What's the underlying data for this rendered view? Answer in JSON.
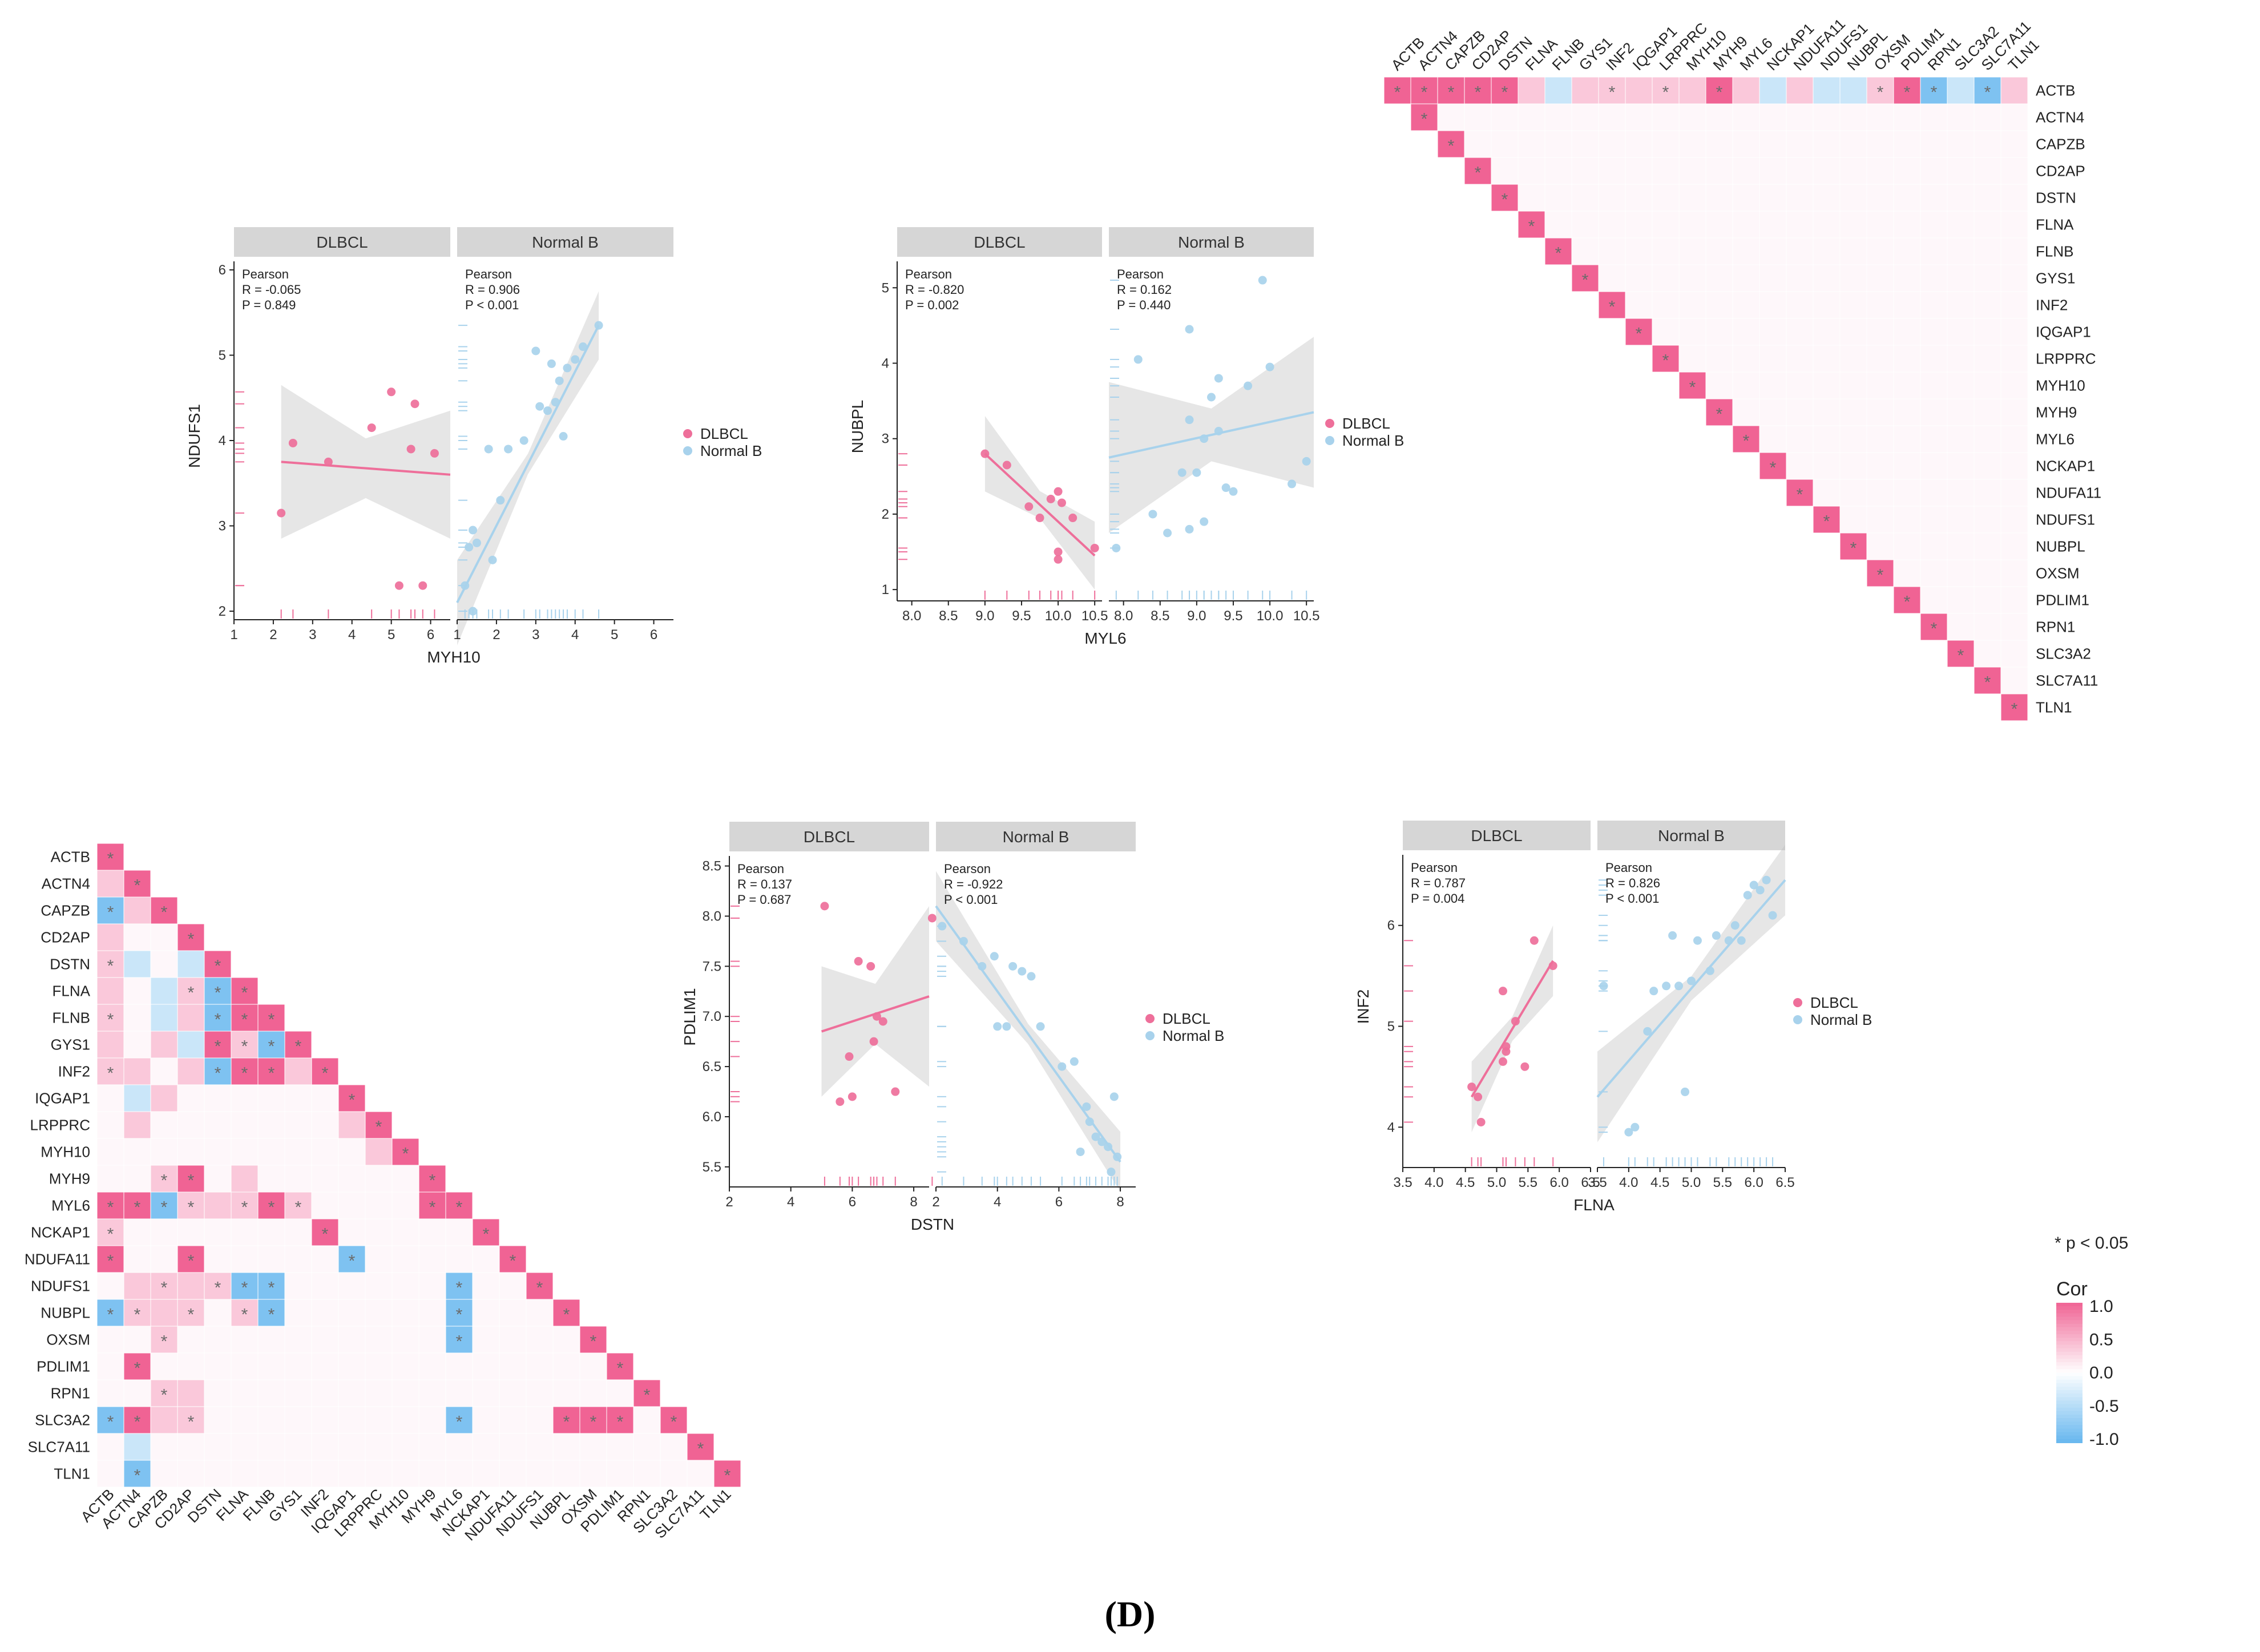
{
  "figure_label": "(D)",
  "significance_note": "* p < 0.05",
  "colorbar": {
    "title": "Cor",
    "ticks": [
      "1.0",
      "0.5",
      "0.0",
      "-0.5",
      "-1.0"
    ]
  },
  "colors": {
    "dlbcl": "#ee6f9a",
    "normal_b": "#a8d2ec",
    "positive": "#f06394",
    "negative": "#67b7ef",
    "strip": "#d6d6d6"
  },
  "genes": [
    "ACTB",
    "ACTN4",
    "CAPZB",
    "CD2AP",
    "DSTN",
    "FLNA",
    "FLNB",
    "GYS1",
    "INF2",
    "IQGAP1",
    "LRPPRC",
    "MYH10",
    "MYH9",
    "MYL6",
    "NCKAP1",
    "NDUFA11",
    "NDUFS1",
    "NUBPL",
    "OXSM",
    "PDLIM1",
    "RPN1",
    "SLC3A2",
    "SLC7A11",
    "TLN1"
  ],
  "chart_data": [
    {
      "type": "heatmap",
      "id": "heatmap-normal-b-upper",
      "shape": "upper-triangle",
      "value_range": [
        -1,
        1
      ],
      "rows_as_text": [
        "P . . . . . . . . . . . . . . . . . . . . . . .",
        "P P . . . . . . . . . . . . . . . . . . . . . .",
        "P . P . . . . . . . . . . . . . . . . . . . . .",
        "P . . P . . . . . . . . . . . . . . . . . . . .",
        "P . . . P . . . . . . . . . . . . . . . . . . .",
        "p . . . . P . . . . . . . . . . . . . . . . . .",
        "n . . . . . P . . . . . . . . . . . . . . . . .",
        "p . . . . . . P . . . . . . . . . . . . . . . .",
        "p . . . . . . . P . . . . . . . . . . . . . . .",
        "p . . . . . . . . P . . . . . . . . . . . . . .",
        "p . . . . . . . . . P . . . . . . . . . . . . .",
        "p . . . . . . . . . . P . . . . . . . . . . . .",
        "P . . . . . . . . . . . P . . . . . . . . . . .",
        "p . . . . . . . . . . . . P . . . . . . . . . .",
        "n . . . . . . . . . . . . . P . . . . . . . . .",
        "p . . . . . . . . . . . . . . P . . . . . . . .",
        "n . . . . . . . . . . . . . . . P . . . . . . .",
        "n . . . . . . . . . . . . . . . . P . . . . . .",
        "p . . . . . . . . . . . . . . . . . P . . . . .",
        "P . . . . . . . . . . . . . . . . . . P . . . .",
        "N . . . . . . . . . . . . . . . . . . . P . . .",
        "n . . . . . . . . . . . . . . . . . . . . P . .",
        "N . . . . . . . . . . . . . . . . . . . . . P .",
        "p . . . . . . . . . . . . . . . . . . . . . . P"
      ]
    },
    {
      "type": "heatmap",
      "id": "heatmap-dlbcl-lower",
      "shape": "lower-triangle",
      "value_range": [
        -1,
        1
      ],
      "rows_as_text": [
        "P . . . . . . . . . . . . . . . . . . . . . . .",
        "p P . . . . . . . . . . . . . . . . . . . . . .",
        "N p P . . . . . . . . . . . . . . . . . . . . .",
        "p . . P . . . . . . . . . . . . . . . . . . . .",
        "p n . n P . . . . . . . . . . . . . . . . . . .",
        "p . n p N P . . . . . . . . . . . . . . . . . .",
        "p . n p N P P . . . . . . . . . . . . . . . . .",
        "p . p n P p N P . . . . . . . . . . . . . . . .",
        "p p . p N P P p P . . . . . . . . . . . . . . .",
        ". n p . . . . . . P . . . . . . . . . . . . . .",
        ". p . . . . . . . p P . . . . . . . . . . . . .",
        ". . . . . . . . . . p P . . . . . . . . . . . .",
        ". . p P . p . . . . . . P . . . . . . . . . . .",
        "P P N p p p P p . . . . P P . . . . . . . . . .",
        "p . . . . . . . P . . . . . P . . . . . . . . .",
        "P . . P . . . . . N . . . . . P . . . . . . . .",
        ". p p p p N N . . . . . . N . . P . . . . . . .",
        "N p p p . p N . . . . . . N . . . P . . . . . .",
        ". . p . . . . . . . . . . N . . . . P . . . . .",
        ". P . . . . . . . . . . . . . . . . . P . . . .",
        ". . p p . . . . . . . . . . . . . . . . P . . .",
        "N P p p . . . . . . . . . N . . . P P P . P . .",
        ". n . . . . . . . . . . . . . . . . . . . . P .",
        ". N . . . . . . . . . . . . . . . . . . . . . P"
      ]
    },
    {
      "type": "scatter",
      "id": "scatter-myh10-ndufs1",
      "xlabel": "MYH10",
      "ylabel": "NDUFS1",
      "xlim": [
        1,
        6.5
      ],
      "ylim": [
        1.9,
        6.1
      ],
      "xticks": [
        1,
        2,
        3,
        4,
        5,
        6
      ],
      "yticks": [
        2,
        3,
        4,
        5,
        6
      ],
      "panels": [
        {
          "strip": "DLBCL",
          "group": "dlbcl",
          "stat_method": "Pearson",
          "r_text": "R = -0.065",
          "p_text": "P = 0.849",
          "points": [
            [
              2.2,
              3.15
            ],
            [
              2.5,
              3.97
            ],
            [
              3.4,
              3.75
            ],
            [
              4.5,
              4.15
            ],
            [
              5.0,
              4.57
            ],
            [
              5.2,
              2.3
            ],
            [
              5.6,
              4.43
            ],
            [
              5.8,
              2.3
            ],
            [
              6.1,
              3.85
            ],
            [
              5.5,
              3.9
            ]
          ],
          "fit": [
            [
              2.2,
              3.75
            ],
            [
              6.5,
              3.6
            ]
          ],
          "band_half_width": [
            0.9,
            0.35,
            0.75
          ]
        },
        {
          "strip": "Normal B",
          "group": "normal_b",
          "stat_method": "Pearson",
          "r_text": "R = 0.906",
          "p_text": "P < 0.001",
          "points": [
            [
              1.2,
              2.3
            ],
            [
              1.3,
              2.75
            ],
            [
              1.4,
              2.95
            ],
            [
              1.5,
              2.8
            ],
            [
              1.8,
              3.9
            ],
            [
              1.9,
              2.6
            ],
            [
              2.1,
              3.3
            ],
            [
              2.3,
              3.9
            ],
            [
              2.7,
              4.0
            ],
            [
              3.0,
              5.05
            ],
            [
              3.1,
              4.4
            ],
            [
              3.3,
              4.35
            ],
            [
              3.4,
              4.9
            ],
            [
              3.6,
              4.7
            ],
            [
              3.7,
              4.05
            ],
            [
              3.8,
              4.85
            ],
            [
              4.0,
              4.95
            ],
            [
              4.2,
              5.1
            ],
            [
              4.6,
              5.35
            ],
            [
              3.5,
              4.45
            ],
            [
              1.4,
              2.0
            ]
          ],
          "fit": [
            [
              1.0,
              2.1
            ],
            [
              4.6,
              5.35
            ]
          ],
          "band_half_width": [
            0.5,
            0.12,
            0.4
          ]
        }
      ],
      "legend": [
        "DLBCL",
        "Normal B"
      ]
    },
    {
      "type": "scatter",
      "id": "scatter-myl6-nubpl",
      "xlabel": "MYL6",
      "ylabel": "NUBPL",
      "xlim": [
        7.8,
        10.6
      ],
      "ylim": [
        0.85,
        5.35
      ],
      "xticks": [
        8.0,
        8.5,
        9.0,
        9.5,
        10.0,
        10.5
      ],
      "yticks": [
        1,
        2,
        3,
        4,
        5
      ],
      "panels": [
        {
          "strip": "DLBCL",
          "group": "dlbcl",
          "stat_method": "Pearson",
          "r_text": "R = -0.820",
          "p_text": "P = 0.002",
          "points": [
            [
              9.0,
              2.8
            ],
            [
              9.3,
              2.65
            ],
            [
              9.6,
              2.1
            ],
            [
              9.75,
              1.95
            ],
            [
              9.9,
              2.2
            ],
            [
              10.0,
              2.3
            ],
            [
              10.0,
              1.5
            ],
            [
              10.05,
              2.15
            ],
            [
              10.2,
              1.95
            ],
            [
              10.5,
              1.55
            ],
            [
              10.0,
              1.4
            ]
          ],
          "fit": [
            [
              9.0,
              2.8
            ],
            [
              10.5,
              1.45
            ]
          ],
          "band_half_width": [
            0.5,
            0.18,
            0.45
          ]
        },
        {
          "strip": "Normal B",
          "group": "normal_b",
          "stat_method": "Pearson",
          "r_text": "R = 0.162",
          "p_text": "P = 0.440",
          "points": [
            [
              7.9,
              1.55
            ],
            [
              8.2,
              4.05
            ],
            [
              8.4,
              2.0
            ],
            [
              8.6,
              1.75
            ],
            [
              8.8,
              2.55
            ],
            [
              8.9,
              3.25
            ],
            [
              8.9,
              4.45
            ],
            [
              9.0,
              2.55
            ],
            [
              9.1,
              1.9
            ],
            [
              9.1,
              3.0
            ],
            [
              9.2,
              3.55
            ],
            [
              9.3,
              3.8
            ],
            [
              9.3,
              3.1
            ],
            [
              9.4,
              2.35
            ],
            [
              9.5,
              2.3
            ],
            [
              9.7,
              3.7
            ],
            [
              9.9,
              5.1
            ],
            [
              10.0,
              3.95
            ],
            [
              10.3,
              2.4
            ],
            [
              10.5,
              2.7
            ],
            [
              8.9,
              1.8
            ]
          ],
          "fit": [
            [
              7.8,
              2.75
            ],
            [
              10.6,
              3.35
            ]
          ],
          "band_half_width": [
            1.0,
            0.35,
            1.0
          ]
        }
      ],
      "legend": [
        "DLBCL",
        "Normal B"
      ]
    },
    {
      "type": "scatter",
      "id": "scatter-dstn-pdlim1",
      "xlabel": "DSTN",
      "ylabel": "PDLIM1",
      "xlim": [
        2,
        8.5
      ],
      "ylim": [
        5.3,
        8.6
      ],
      "xticks": [
        2,
        4,
        6,
        8
      ],
      "yticks": [
        5.5,
        6.0,
        6.5,
        7.0,
        7.5,
        8.0,
        8.5
      ],
      "panels": [
        {
          "strip": "DLBCL",
          "group": "dlbcl",
          "stat_method": "Pearson",
          "r_text": "R = 0.137",
          "p_text": "P = 0.687",
          "points": [
            [
              5.1,
              8.1
            ],
            [
              5.6,
              6.15
            ],
            [
              5.9,
              6.6
            ],
            [
              6.0,
              6.2
            ],
            [
              6.2,
              7.55
            ],
            [
              6.6,
              7.5
            ],
            [
              6.7,
              6.75
            ],
            [
              6.8,
              7.0
            ],
            [
              7.0,
              6.95
            ],
            [
              7.4,
              6.25
            ],
            [
              8.6,
              7.98
            ]
          ],
          "fit": [
            [
              5.0,
              6.85
            ],
            [
              8.5,
              7.2
            ]
          ],
          "band_half_width": [
            0.65,
            0.3,
            0.9
          ]
        },
        {
          "strip": "Normal B",
          "group": "normal_b",
          "stat_method": "Pearson",
          "r_text": "R = -0.922",
          "p_text": "P < 0.001",
          "points": [
            [
              2.2,
              7.9
            ],
            [
              2.9,
              7.75
            ],
            [
              3.5,
              7.5
            ],
            [
              3.9,
              7.6
            ],
            [
              4.0,
              6.9
            ],
            [
              4.3,
              6.9
            ],
            [
              4.5,
              7.5
            ],
            [
              4.8,
              7.45
            ],
            [
              5.1,
              7.4
            ],
            [
              5.4,
              6.9
            ],
            [
              6.1,
              6.5
            ],
            [
              6.5,
              6.55
            ],
            [
              6.7,
              5.65
            ],
            [
              6.9,
              6.1
            ],
            [
              7.0,
              5.95
            ],
            [
              7.2,
              5.8
            ],
            [
              7.4,
              5.75
            ],
            [
              7.6,
              5.7
            ],
            [
              7.7,
              5.45
            ],
            [
              7.8,
              6.2
            ],
            [
              7.9,
              5.6
            ]
          ],
          "fit": [
            [
              2.0,
              8.1
            ],
            [
              8.0,
              5.55
            ]
          ],
          "band_half_width": [
            0.35,
            0.1,
            0.3
          ]
        }
      ],
      "legend": [
        "DLBCL",
        "Normal B"
      ]
    },
    {
      "type": "scatter",
      "id": "scatter-flna-inf2",
      "xlabel": "FLNA",
      "ylabel": "INF2",
      "xlim": [
        3.5,
        6.5
      ],
      "ylim": [
        3.6,
        6.7
      ],
      "xticks": [
        3.5,
        4.0,
        4.5,
        5.0,
        5.5,
        6.0,
        6.5
      ],
      "yticks": [
        4,
        5,
        6
      ],
      "panels": [
        {
          "strip": "DLBCL",
          "group": "dlbcl",
          "stat_method": "Pearson",
          "r_text": "R = 0.787",
          "p_text": "P = 0.004",
          "points": [
            [
              4.6,
              4.4
            ],
            [
              4.7,
              4.3
            ],
            [
              4.75,
              4.05
            ],
            [
              5.1,
              4.65
            ],
            [
              5.1,
              5.35
            ],
            [
              5.15,
              4.8
            ],
            [
              5.3,
              5.05
            ],
            [
              5.45,
              4.6
            ],
            [
              5.6,
              5.85
            ],
            [
              5.9,
              5.6
            ],
            [
              5.15,
              4.75
            ]
          ],
          "fit": [
            [
              4.6,
              4.3
            ],
            [
              5.9,
              5.65
            ]
          ],
          "band_half_width": [
            0.35,
            0.12,
            0.35
          ]
        },
        {
          "strip": "Normal B",
          "group": "normal_b",
          "stat_method": "Pearson",
          "r_text": "R = 0.826",
          "p_text": "P < 0.001",
          "points": [
            [
              4.0,
              3.95
            ],
            [
              4.1,
              4.0
            ],
            [
              4.3,
              4.95
            ],
            [
              4.4,
              5.35
            ],
            [
              4.6,
              5.4
            ],
            [
              4.7,
              5.9
            ],
            [
              4.9,
              4.35
            ],
            [
              5.0,
              5.45
            ],
            [
              5.1,
              5.85
            ],
            [
              5.3,
              5.55
            ],
            [
              5.4,
              5.9
            ],
            [
              5.6,
              5.85
            ],
            [
              5.7,
              6.0
            ],
            [
              5.8,
              5.85
            ],
            [
              5.9,
              6.3
            ],
            [
              6.0,
              6.4
            ],
            [
              6.1,
              6.35
            ],
            [
              6.2,
              6.45
            ],
            [
              6.3,
              6.1
            ],
            [
              3.6,
              5.4
            ],
            [
              4.8,
              5.4
            ]
          ],
          "fit": [
            [
              3.5,
              4.3
            ],
            [
              6.5,
              6.45
            ]
          ],
          "band_half_width": [
            0.45,
            0.12,
            0.35
          ]
        }
      ],
      "legend": [
        "DLBCL",
        "Normal B"
      ]
    }
  ]
}
